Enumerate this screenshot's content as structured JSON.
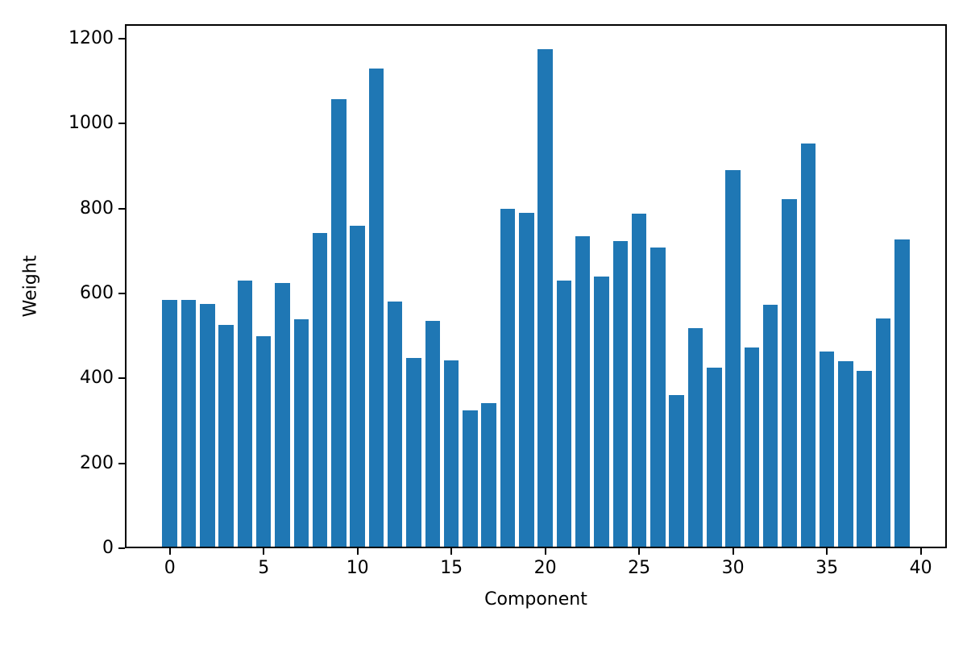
{
  "chart_data": {
    "type": "bar",
    "title": "",
    "xlabel": "Component",
    "ylabel": "Weight",
    "x": [
      0,
      1,
      2,
      3,
      4,
      5,
      6,
      7,
      8,
      9,
      10,
      11,
      12,
      13,
      14,
      15,
      16,
      17,
      18,
      19,
      20,
      21,
      22,
      23,
      24,
      25,
      26,
      27,
      28,
      29,
      30,
      31,
      32,
      33,
      34,
      35,
      36,
      37,
      38,
      39
    ],
    "values": [
      585,
      585,
      575,
      525,
      630,
      500,
      625,
      540,
      743,
      1057,
      760,
      1130,
      580,
      448,
      535,
      442,
      325,
      342,
      800,
      790,
      1175,
      630,
      735,
      640,
      723,
      787,
      708,
      360,
      518,
      425,
      890,
      473,
      573,
      822,
      953,
      463,
      440,
      417,
      542,
      728
    ],
    "bar_width": 0.8,
    "bar_color": "#1f77b4",
    "xticks": [
      0,
      5,
      10,
      15,
      20,
      25,
      30,
      35,
      40
    ],
    "yticks": [
      0,
      200,
      400,
      600,
      800,
      1000,
      1200
    ],
    "xlim": [
      -2.39,
      41.39
    ],
    "ylim": [
      0,
      1233.8
    ],
    "grid": false,
    "legend": "none",
    "background_color": "#ffffff",
    "spine_color": "#000000"
  }
}
